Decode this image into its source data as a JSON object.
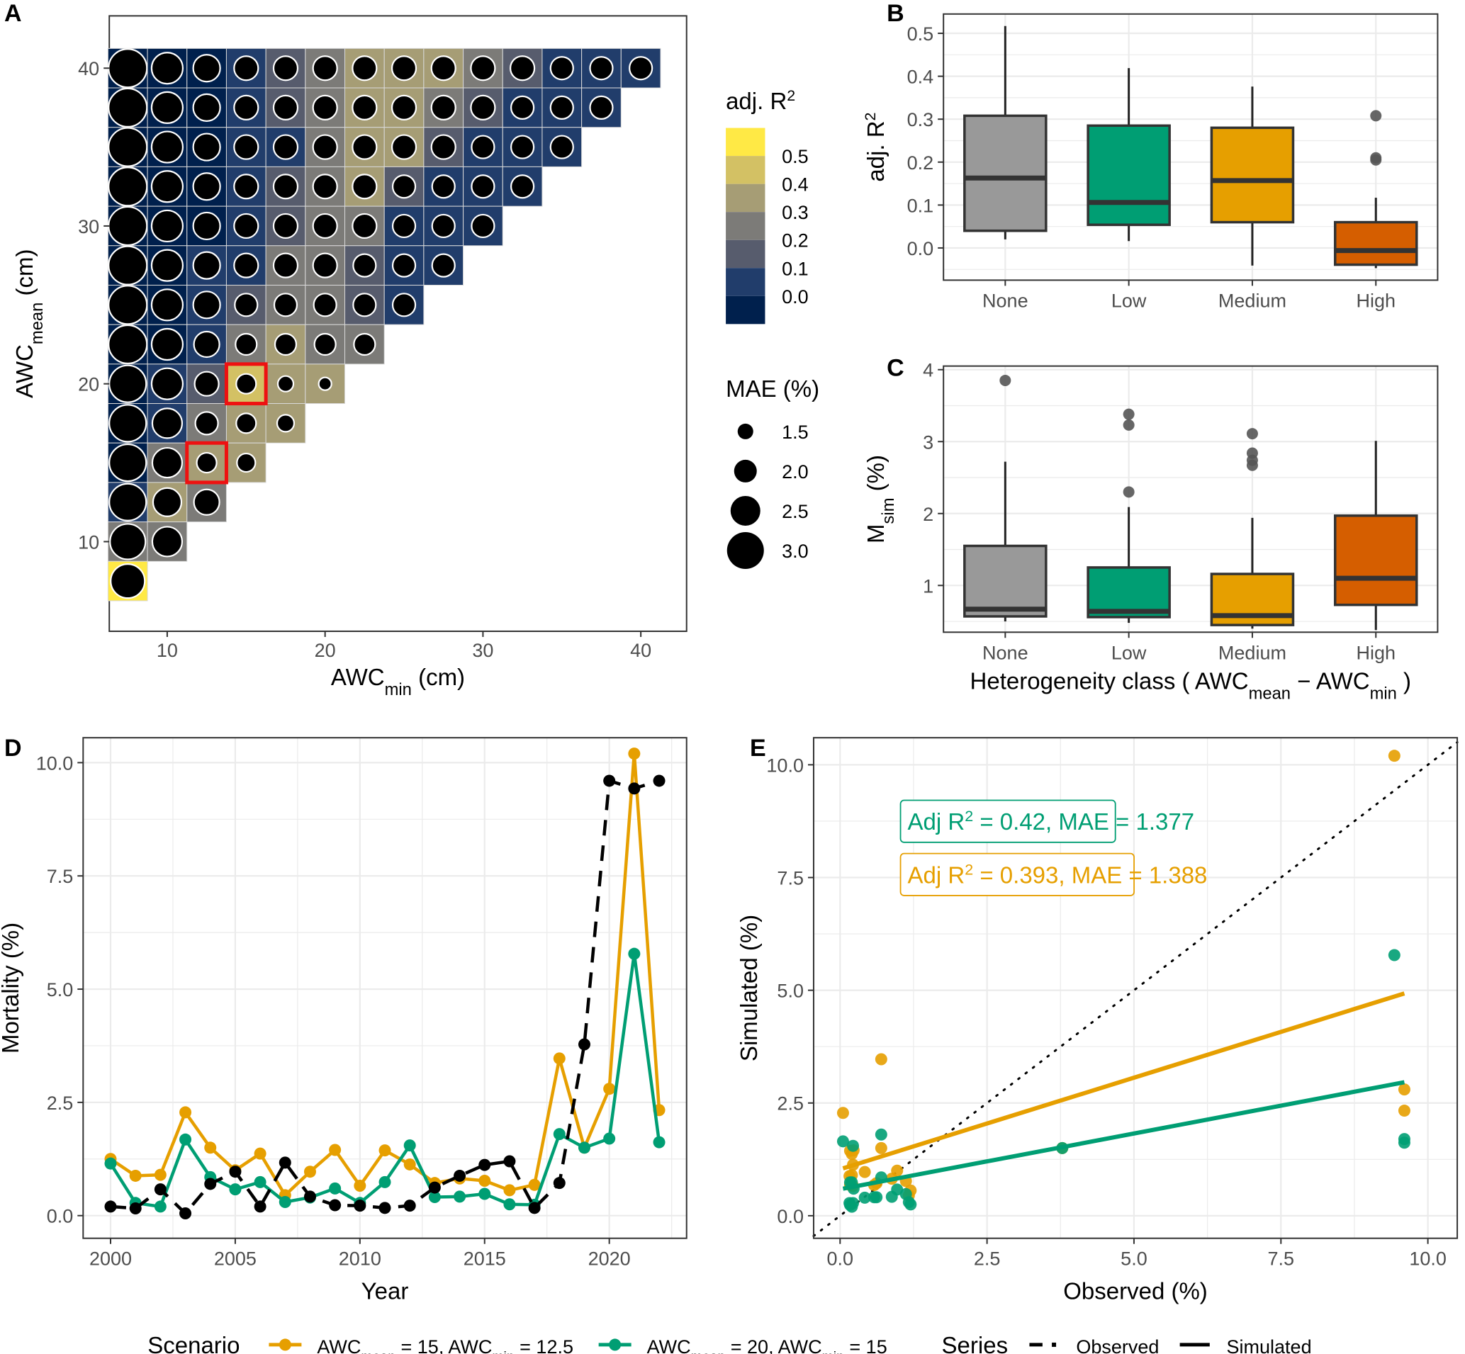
{
  "chart_data": [
    {
      "panel": "A",
      "type": "heatmap",
      "xlabel": "AWC",
      "xlabel_sub": "min",
      "xlabel_unit": " (cm)",
      "ylabel": "AWC",
      "ylabel_sub": "mean",
      "ylabel_unit": " (cm)",
      "xlim": [
        5.5,
        43
      ],
      "ylim": [
        5,
        43
      ],
      "x_ticks": [
        10,
        20,
        30,
        40
      ],
      "y_ticks": [
        10,
        20,
        30,
        40
      ],
      "cell_step": 2.5,
      "fill_legend": {
        "title": "adj. R",
        "title_sup": "2",
        "labels": [
          "0.5",
          "0.4",
          "0.3",
          "0.2",
          "0.1",
          "0.0"
        ],
        "colors": [
          "#ffe945",
          "#d3c164",
          "#a69d75",
          "#7c7b78",
          "#575c6d",
          "#213d6b",
          "#00204d"
        ]
      },
      "size_legend": {
        "title": "MAE (%)",
        "labels": [
          "1.5",
          "2.0",
          "2.5",
          "3.0"
        ],
        "values": [
          1.5,
          2.0,
          2.5,
          3.0
        ]
      },
      "rows": [
        {
          "y": 40,
          "classes": [
            0,
            0,
            0,
            1,
            2,
            3,
            4,
            4,
            4,
            3,
            2,
            1,
            1,
            1
          ],
          "mae": [
            3.1,
            2.6,
            2.3,
            2.1,
            2.1,
            2.1,
            2.1,
            2.1,
            2.1,
            2.1,
            2.1,
            2.0,
            2.0,
            2.0
          ]
        },
        {
          "y": 37.5,
          "classes": [
            0,
            0,
            0,
            1,
            2,
            3,
            4,
            4,
            3,
            2,
            1,
            1,
            1
          ],
          "mae": [
            3.1,
            2.6,
            2.3,
            2.1,
            2.1,
            2.1,
            2.1,
            2.1,
            2.1,
            2.1,
            2.0,
            2.0,
            2.0
          ]
        },
        {
          "y": 35,
          "classes": [
            0,
            0,
            0,
            1,
            1,
            3,
            4,
            4,
            2,
            1,
            1,
            1
          ],
          "mae": [
            3.1,
            2.6,
            2.3,
            2.1,
            2.1,
            2.1,
            2.1,
            2.1,
            2.1,
            2.0,
            2.0,
            2.0
          ]
        },
        {
          "y": 32.5,
          "classes": [
            0,
            0,
            0,
            1,
            2,
            3,
            4,
            2,
            1,
            1,
            1
          ],
          "mae": [
            3.1,
            2.6,
            2.3,
            2.1,
            2.1,
            2.1,
            2.1,
            2.0,
            2.0,
            2.0,
            2.0
          ]
        },
        {
          "y": 30,
          "classes": [
            0,
            0,
            0,
            1,
            2,
            3,
            3,
            1,
            1,
            1
          ],
          "mae": [
            3.1,
            2.6,
            2.3,
            2.1,
            2.1,
            2.1,
            2.1,
            2.0,
            2.0,
            2.0
          ]
        },
        {
          "y": 27.5,
          "classes": [
            0,
            0,
            1,
            1,
            3,
            3,
            2,
            1,
            1
          ],
          "mae": [
            3.1,
            2.6,
            2.3,
            2.1,
            2.1,
            2.1,
            2.0,
            2.0,
            2.0
          ]
        },
        {
          "y": 25,
          "classes": [
            0,
            0,
            1,
            2,
            3,
            3,
            2,
            1
          ],
          "mae": [
            3.1,
            2.6,
            2.3,
            2.0,
            2.0,
            2.0,
            2.0,
            2.0
          ]
        },
        {
          "y": 22.5,
          "classes": [
            0,
            0,
            1,
            3,
            4,
            3,
            3
          ],
          "mae": [
            3.1,
            2.6,
            2.2,
            1.9,
            1.9,
            1.9,
            1.9
          ]
        },
        {
          "y": 20,
          "classes": [
            0,
            1,
            2,
            5,
            4,
            4
          ],
          "mae": [
            3.0,
            2.6,
            2.1,
            1.8,
            1.5,
            1.3
          ]
        },
        {
          "y": 17.5,
          "classes": [
            0,
            1,
            3,
            4,
            4
          ],
          "mae": [
            3.0,
            2.5,
            2.0,
            1.8,
            1.6
          ]
        },
        {
          "y": 15,
          "classes": [
            0,
            3,
            4,
            4
          ],
          "mae": [
            3.0,
            2.5,
            1.8,
            1.7
          ]
        },
        {
          "y": 12.5,
          "classes": [
            1,
            4,
            3
          ],
          "mae": [
            3.0,
            2.4,
            2.2
          ]
        },
        {
          "y": 10,
          "classes": [
            3,
            3
          ],
          "mae": [
            2.9,
            2.5
          ]
        },
        {
          "y": 7.5,
          "classes": [
            6
          ],
          "mae": [
            2.8
          ]
        }
      ],
      "highlighted_cells": [
        {
          "x": 15,
          "y": 20
        },
        {
          "x": 12.5,
          "y": 15
        }
      ],
      "highlight_color": "#ee1111"
    },
    {
      "panel": "B",
      "type": "box",
      "ylabel": "adj. R",
      "ylabel_sup": "2",
      "categories": [
        "None",
        "Low",
        "Medium",
        "High"
      ],
      "colors": [
        "#999999",
        "#009e73",
        "#e69f00",
        "#d55e00"
      ],
      "ylim": [
        -0.075,
        0.545
      ],
      "y_ticks": [
        "0.0",
        "0.1",
        "0.2",
        "0.3",
        "0.4",
        "0.5"
      ],
      "boxes": [
        {
          "min": 0.02,
          "q1": 0.04,
          "median": 0.163,
          "q3": 0.308,
          "max": 0.517,
          "outliers": []
        },
        {
          "min": 0.016,
          "q1": 0.054,
          "median": 0.106,
          "q3": 0.285,
          "max": 0.419,
          "outliers": []
        },
        {
          "min": -0.041,
          "q1": 0.06,
          "median": 0.157,
          "q3": 0.28,
          "max": 0.376,
          "outliers": []
        },
        {
          "min": -0.047,
          "q1": -0.039,
          "median": -0.006,
          "q3": 0.06,
          "max": 0.117,
          "outliers": [
            0.308,
            0.21,
            0.205
          ]
        }
      ]
    },
    {
      "panel": "C",
      "type": "box",
      "ylabel": "M",
      "ylabel_sub": "sim",
      "ylabel_unit": " (%)",
      "xlabel": "Heterogeneity class ( AWC",
      "xlabel_sub1": "mean",
      "xlabel_mid": " − AWC",
      "xlabel_sub2": "min",
      "xlabel_end": " )",
      "categories": [
        "None",
        "Low",
        "Medium",
        "High"
      ],
      "colors": [
        "#999999",
        "#009e73",
        "#e69f00",
        "#d55e00"
      ],
      "ylim": [
        0.35,
        4.05
      ],
      "y_ticks": [
        "1",
        "2",
        "3",
        "4"
      ],
      "boxes": [
        {
          "min": 0.5,
          "q1": 0.57,
          "median": 0.67,
          "q3": 1.55,
          "max": 2.72,
          "outliers": [
            3.85
          ]
        },
        {
          "min": 0.48,
          "q1": 0.56,
          "median": 0.64,
          "q3": 1.25,
          "max": 2.09,
          "outliers": [
            3.38,
            3.23,
            2.3
          ]
        },
        {
          "min": 0.4,
          "q1": 0.45,
          "median": 0.58,
          "q3": 1.16,
          "max": 1.94,
          "outliers": [
            3.11,
            2.84,
            2.74,
            2.67
          ]
        },
        {
          "min": 0.38,
          "q1": 0.73,
          "median": 1.1,
          "q3": 1.97,
          "max": 3.01,
          "outliers": []
        }
      ]
    },
    {
      "panel": "D",
      "type": "line",
      "xlabel": "Year",
      "ylabel": "Mortality (%)",
      "xlim": [
        1998.9,
        2023.1
      ],
      "ylim": [
        -0.5,
        10.55
      ],
      "x_ticks": [
        "2000",
        "2005",
        "2010",
        "2015",
        "2020"
      ],
      "y_ticks": [
        "0.0",
        "2.5",
        "5.0",
        "7.5",
        "10.0"
      ],
      "x": [
        2000,
        2001,
        2002,
        2003,
        2004,
        2005,
        2006,
        2007,
        2008,
        2009,
        2010,
        2011,
        2012,
        2013,
        2014,
        2015,
        2016,
        2017,
        2018,
        2019,
        2020,
        2021,
        2022
      ],
      "series": [
        {
          "name": "AWCmean = 15, AWCmin = 12.5 (Simulated)",
          "color": "#e69f00",
          "dash": "solid",
          "values": [
            1.25,
            0.88,
            0.9,
            2.28,
            1.5,
            1.0,
            1.37,
            0.45,
            0.97,
            1.45,
            0.66,
            1.44,
            1.13,
            0.72,
            0.82,
            0.77,
            0.56,
            0.68,
            3.47,
            1.5,
            2.8,
            10.2,
            2.33
          ]
        },
        {
          "name": "AWCmean = 20, AWCmin = 15 (Simulated)",
          "color": "#009e73",
          "dash": "solid",
          "values": [
            1.15,
            0.28,
            0.2,
            1.68,
            0.85,
            0.58,
            0.74,
            0.3,
            0.4,
            0.6,
            0.28,
            0.74,
            1.55,
            0.41,
            0.42,
            0.48,
            0.25,
            0.24,
            1.8,
            1.5,
            1.7,
            5.78,
            1.62
          ]
        },
        {
          "name": "Observed",
          "color": "#000000",
          "dash": "dashed",
          "values": [
            0.2,
            0.16,
            0.58,
            0.05,
            0.7,
            0.97,
            0.2,
            1.17,
            0.42,
            0.23,
            0.22,
            0.17,
            0.22,
            0.62,
            0.88,
            1.12,
            1.2,
            0.17,
            0.72,
            3.78,
            9.6,
            9.43,
            9.6
          ]
        }
      ]
    },
    {
      "panel": "E",
      "type": "scatter",
      "xlabel": "Observed (%)",
      "ylabel": "Simulated (%)",
      "xlim": [
        -0.45,
        10.5
      ],
      "ylim": [
        -0.5,
        10.6
      ],
      "x_ticks": [
        "0.0",
        "2.5",
        "5.0",
        "7.5",
        "10.0"
      ],
      "y_ticks": [
        "0.0",
        "2.5",
        "5.0",
        "7.5",
        "10.0"
      ],
      "reference_line": "1:1 dotted",
      "annotations": [
        {
          "prefix": "Adj R",
          "sup": "2",
          "text": " = 0.42,  MAE = 1.377",
          "color": "#009e73"
        },
        {
          "prefix": "Adj R",
          "sup": "2",
          "text": " = 0.393,  MAE = 1.388",
          "color": "#e69f00"
        }
      ],
      "fits": [
        {
          "color": "#e69f00",
          "x": [
            0.05,
            9.6
          ],
          "y": [
            1.05,
            4.93
          ]
        },
        {
          "color": "#009e73",
          "x": [
            0.05,
            9.6
          ],
          "y": [
            0.6,
            2.96
          ]
        }
      ],
      "series": [
        {
          "color": "#e69f00",
          "points": [
            [
              0.05,
              2.28
            ],
            [
              0.16,
              0.88
            ],
            [
              0.2,
              0.9
            ],
            [
              0.58,
              0.68
            ],
            [
              0.7,
              1.5
            ],
            [
              0.97,
              1.0
            ],
            [
              0.2,
              1.37
            ],
            [
              1.17,
              0.45
            ],
            [
              0.42,
              0.97
            ],
            [
              0.23,
              1.45
            ],
            [
              0.22,
              0.66
            ],
            [
              0.17,
              1.44
            ],
            [
              0.22,
              1.13
            ],
            [
              0.62,
              0.72
            ],
            [
              0.88,
              0.82
            ],
            [
              1.12,
              0.77
            ],
            [
              1.2,
              0.56
            ],
            [
              0.17,
              0.68
            ],
            [
              0.7,
              3.47
            ],
            [
              3.78,
              1.5
            ],
            [
              9.6,
              2.8
            ],
            [
              9.43,
              10.2
            ],
            [
              9.6,
              2.33
            ]
          ]
        },
        {
          "color": "#009e73",
          "points": [
            [
              0.05,
              1.65
            ],
            [
              0.16,
              0.28
            ],
            [
              0.2,
              0.2
            ],
            [
              0.58,
              0.41
            ],
            [
              0.7,
              0.85
            ],
            [
              0.97,
              0.58
            ],
            [
              0.2,
              0.74
            ],
            [
              1.17,
              0.3
            ],
            [
              0.42,
              0.4
            ],
            [
              0.23,
              0.6
            ],
            [
              0.22,
              0.28
            ],
            [
              0.17,
              0.74
            ],
            [
              0.22,
              1.55
            ],
            [
              0.62,
              0.41
            ],
            [
              0.88,
              0.42
            ],
            [
              1.12,
              0.48
            ],
            [
              1.2,
              0.25
            ],
            [
              0.17,
              0.24
            ],
            [
              0.7,
              1.8
            ],
            [
              3.78,
              1.5
            ],
            [
              9.6,
              1.7
            ],
            [
              9.43,
              5.78
            ],
            [
              9.6,
              1.62
            ]
          ]
        }
      ]
    }
  ],
  "legend_bottom": {
    "scenario_title": "Scenario",
    "scenario_items": [
      {
        "pre": "AWC",
        "sub1": "mean",
        "mid": " = 15,  AWC",
        "sub2": "min",
        "post": " = 12.5",
        "color": "#e69f00"
      },
      {
        "pre": "AWC",
        "sub1": "mean",
        "mid": " = 20,  AWC",
        "sub2": "min",
        "post": " = 15",
        "color": "#009e73"
      }
    ],
    "series_title": "Series",
    "series_items": [
      {
        "label": "Observed",
        "dash": "dashed"
      },
      {
        "label": "Simulated",
        "dash": "solid"
      }
    ]
  },
  "panel_labels": [
    "A",
    "B",
    "C",
    "D",
    "E"
  ]
}
